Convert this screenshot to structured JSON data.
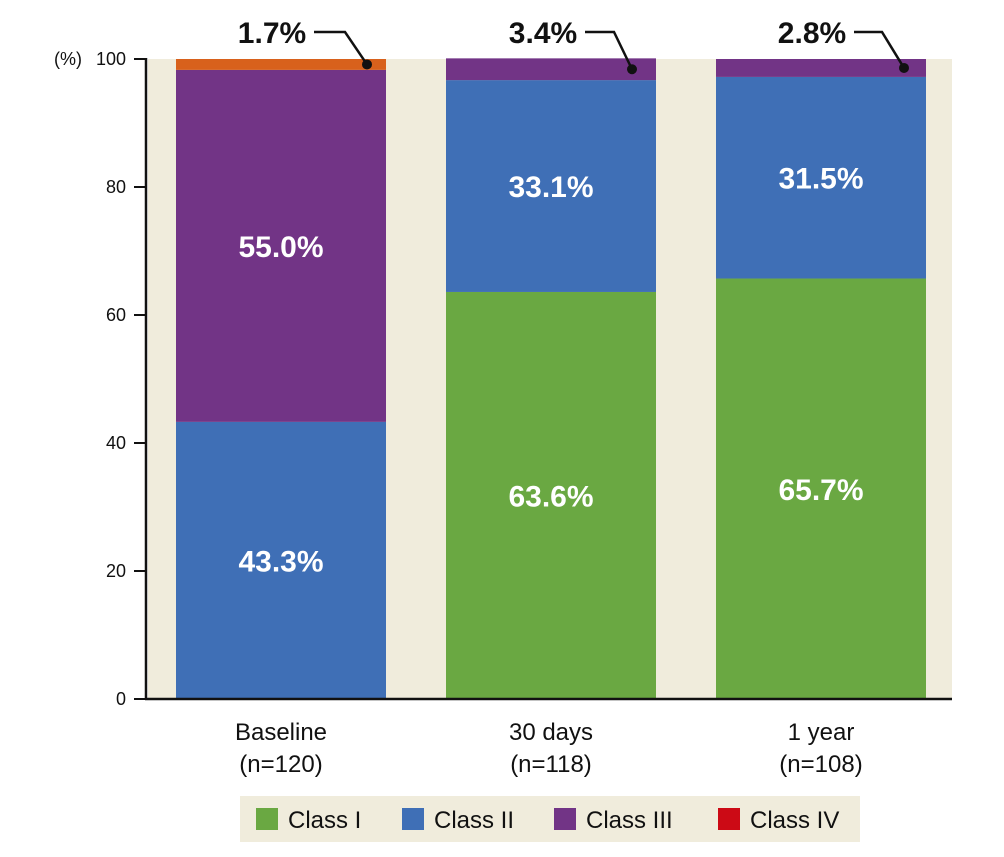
{
  "chart_data": {
    "type": "bar",
    "stacked": true,
    "y_unit_label": "(%)",
    "ylim": [
      0,
      100
    ],
    "yticks": [
      0,
      20,
      40,
      60,
      80,
      100
    ],
    "grid": false,
    "legend_placement": "bottom",
    "categories": [
      {
        "line1": "Baseline",
        "line2": "(n=120)"
      },
      {
        "line1": "30 days",
        "line2": "(n=118)"
      },
      {
        "line1": "1 year",
        "line2": "(n=108)"
      }
    ],
    "series": [
      {
        "name": "Class I",
        "color": "#6aa842",
        "values": [
          0,
          63.6,
          65.7
        ],
        "labels": [
          "",
          "63.6%",
          "65.7%"
        ]
      },
      {
        "name": "Class II",
        "color": "#3f6fb6",
        "values": [
          43.3,
          33.1,
          31.5
        ],
        "labels": [
          "43.3%",
          "33.1%",
          "31.5%"
        ]
      },
      {
        "name": "Class III",
        "color": "#723486",
        "values": [
          55.0,
          3.4,
          2.8
        ],
        "labels": [
          "55.0%",
          "3.4%",
          "2.8%"
        ]
      },
      {
        "name": "Class IV",
        "color": "#cc0a15",
        "values": [
          1.7,
          0,
          0
        ],
        "labels": [
          "1.7%",
          "",
          ""
        ]
      }
    ],
    "top_segment_color_baseline": "#d8611c",
    "background_band_color": "#f0ecdc"
  }
}
